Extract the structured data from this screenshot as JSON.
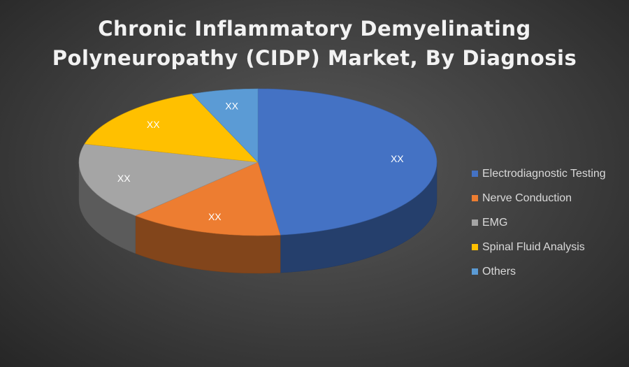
{
  "chart_data": {
    "type": "pie",
    "title_lines": [
      "Chronic Inflammatory Demyelinating",
      "Polyneuropathy (CIDP) Market, By Diagnosis"
    ],
    "categories": [
      "Electrodiagnostic Testing",
      "Nerve Conduction",
      "EMG",
      "Spinal Fluid Analysis",
      "Others"
    ],
    "values": [
      48,
      14,
      17,
      15,
      6
    ],
    "data_labels": [
      "XX",
      "XX",
      "XX",
      "XX",
      "XX"
    ],
    "colors": [
      "#4472c4",
      "#ed7d31",
      "#a5a5a5",
      "#ffc000",
      "#5b9bd5"
    ],
    "legend_position": "right",
    "style": "3d"
  }
}
